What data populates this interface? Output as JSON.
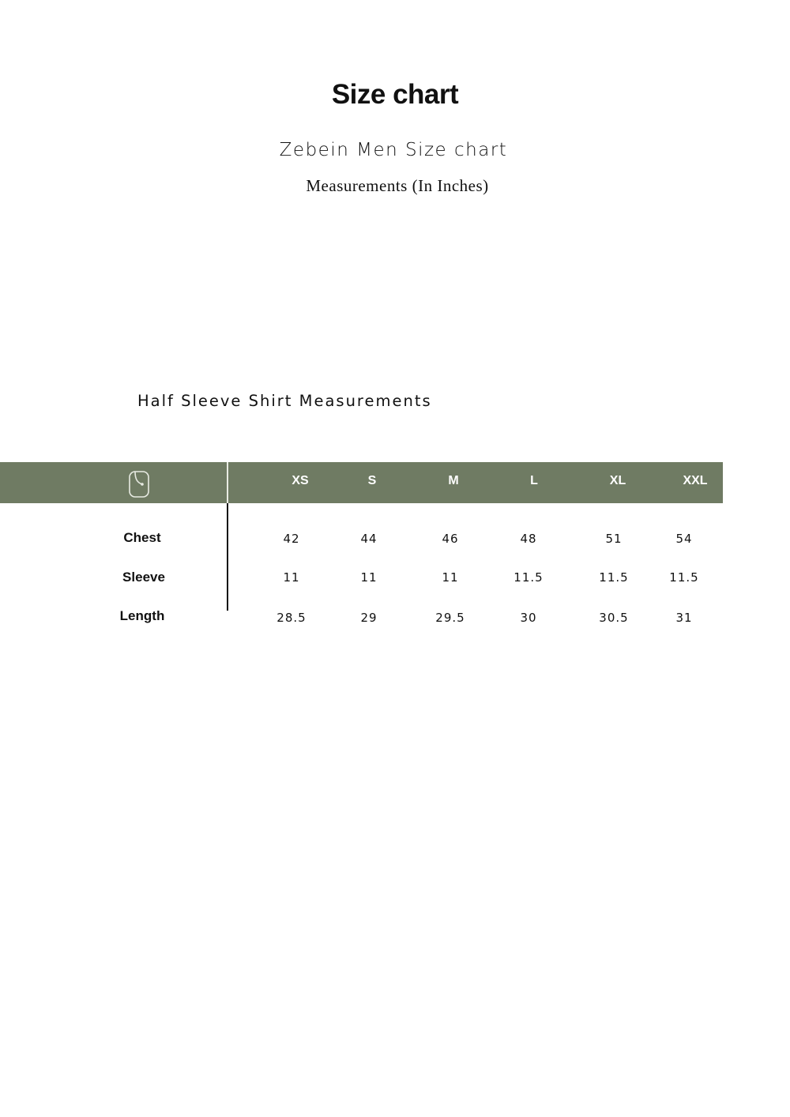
{
  "title": "Size chart",
  "subtitle": "Zebein Men Size chart",
  "measurements_note": "Measurements (In Inches)",
  "section_title": "Half Sleeve Shirt Measurements",
  "header_color": "#6f7b63",
  "table": {
    "icon": "measuring-tape-icon",
    "sizes": [
      "XS",
      "S",
      "M",
      "L",
      "XL",
      "XXL"
    ],
    "rows": [
      {
        "label": "Chest",
        "values": [
          "42",
          "44",
          "46",
          "48",
          "51",
          "54"
        ]
      },
      {
        "label": "Sleeve",
        "values": [
          "11",
          "11",
          "11",
          "11.5",
          "11.5",
          "11.5"
        ]
      },
      {
        "label": "Length",
        "values": [
          "28.5",
          "29",
          "29.5",
          "30",
          "30.5",
          "31"
        ]
      }
    ]
  }
}
